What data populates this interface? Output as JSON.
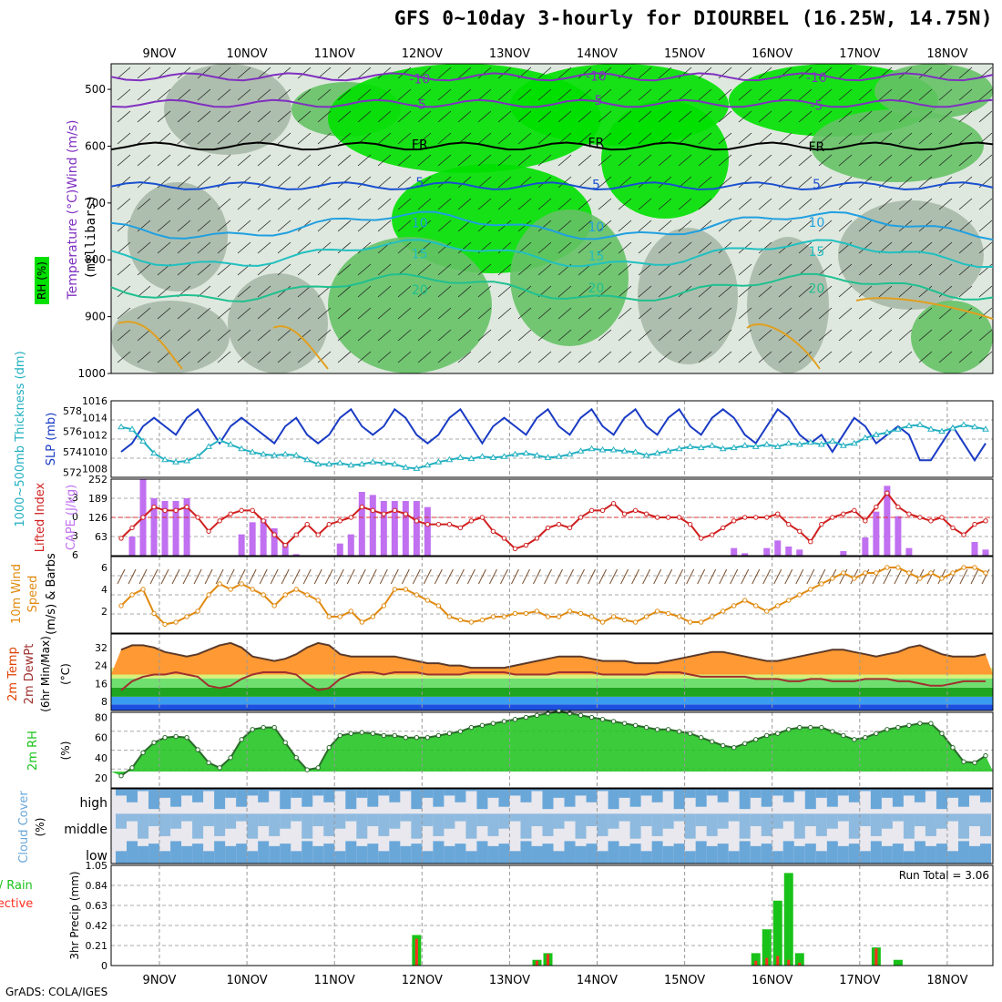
{
  "title": "GFS 0~10day 3-hourly for DIOURBEL (16.25W, 14.75N)",
  "credit": "GrADS: COLA/IGES",
  "dates": [
    "9NOV",
    "10NOV",
    "11NOV",
    "12NOV",
    "13NOV",
    "14NOV",
    "15NOV",
    "16NOV",
    "17NOV",
    "18NOV"
  ],
  "colors": {
    "rh_green": "#00e000",
    "rh_mid": "#66c266",
    "rh_gray": "#a9b9a9",
    "rh_light": "#dfe8df",
    "slp": "#1a3bc4",
    "thickness": "#22b0c0",
    "cape": "#c070f0",
    "li": "#d02020",
    "wind": "#e08a10",
    "temp_hot": "#e04000",
    "temp_warm": "#ff9933",
    "dew": "#a03030",
    "rh2m": "#19c219",
    "cloud": "#6aa7d9",
    "precip_total": "#19c219",
    "precip_conv": "#ff3020"
  },
  "panels": {
    "upper": {
      "ylabel": "Temperature (°C)Wind (m/s)",
      "ylabel2": "(millibars)",
      "legend": "RH (%)",
      "yticks": [
        "500",
        "600",
        "700",
        "800",
        "900",
        "1000"
      ],
      "contours": [
        {
          "label": "-10",
          "level_mb": 478,
          "color": "#8030c0"
        },
        {
          "label": "-5",
          "level_mb": 525,
          "color": "#8030c0"
        },
        {
          "label": "FR",
          "level_mb": 600,
          "color": "#000000"
        },
        {
          "label": "5",
          "level_mb": 670,
          "color": "#1a50d0"
        },
        {
          "label": "10",
          "level_mb": 740,
          "color": "#20a0e0"
        },
        {
          "label": "15",
          "level_mb": 790,
          "color": "#20c0c0"
        },
        {
          "label": "20",
          "level_mb": 850,
          "color": "#20c090"
        }
      ]
    },
    "slp": {
      "ylabel": "1000~500mb Thickness (dm)",
      "ylabel2": "SLP (mb)",
      "left_ticks": [
        "578",
        "576",
        "574",
        "572"
      ],
      "right_ticks": [
        "1016",
        "1014",
        "1012",
        "1010",
        "1008"
      ]
    },
    "cape": {
      "ylabel": "Lifted Index",
      "ylabel2": "CAPE (J/kg)",
      "left_ticks": [
        "-3",
        "0",
        "3",
        "6"
      ],
      "right_ticks": [
        "252",
        "189",
        "126",
        "63"
      ]
    },
    "wind": {
      "ylabel": "10m Wind",
      "ylabel2": "Speed",
      "ylabel3": "(m/s) & Barbs",
      "ticks": [
        "6",
        "4",
        "2"
      ]
    },
    "temp": {
      "ylabel": "2m Temp",
      "ylabel2": "2m DewPt",
      "ylabel3": "(6hr Min/Max)",
      "unit": "(°C)",
      "ticks": [
        "32",
        "24",
        "16",
        "8"
      ]
    },
    "rh": {
      "ylabel": "2m RH",
      "unit": "(%)",
      "ticks": [
        "80",
        "60",
        "40",
        "20"
      ]
    },
    "cloud": {
      "ylabel": "Cloud Cover",
      "unit": "(%)",
      "levels": [
        "high",
        "middle",
        "low"
      ]
    },
    "precip": {
      "ylabel": "3hr Precip (mm)",
      "legend1": "Total / Rain",
      "legend2": "Convective",
      "ticks": [
        "1.05",
        "0.84",
        "0.63",
        "0.42",
        "0.21",
        "0"
      ],
      "run_total": "Run Total = 3.06"
    }
  },
  "chart_data": [
    {
      "type": "line",
      "title": "SLP (mb)",
      "x_step_hours": 3,
      "values": [
        1012,
        1010,
        1011,
        1013,
        1014,
        1013,
        1012,
        1014,
        1015,
        1013,
        1011,
        1013,
        1014,
        1013,
        1012,
        1011,
        1013,
        1014,
        1012,
        1011,
        1012,
        1014,
        1015,
        1013,
        1012,
        1013,
        1015,
        1014,
        1012,
        1011,
        1012,
        1014,
        1015,
        1013,
        1011,
        1013,
        1014,
        1013,
        1012,
        1014,
        1015,
        1013,
        1012,
        1014,
        1015,
        1013,
        1012,
        1014,
        1015,
        1013,
        1012,
        1014,
        1015,
        1013,
        1012,
        1014,
        1015,
        1014,
        1012,
        1011,
        1013,
        1015,
        1014,
        1012,
        1011,
        1012,
        1010,
        1012,
        1014,
        1013,
        1011,
        1012,
        1013,
        1012,
        1009,
        1009,
        1011,
        1013,
        1011,
        1009,
        1011,
        1013,
        1012,
        1009,
        1009,
        1011,
        1012,
        1008,
        1010,
        1013,
        1013,
        1012
      ],
      "ylim": [
        1007,
        1016
      ]
    },
    {
      "type": "line",
      "title": "1000~500mb Thickness (dm)",
      "x_step_hours": 3,
      "values": [
        576.4,
        576.6,
        576.4,
        575.3,
        574.2,
        573.6,
        573.4,
        573.5,
        573.9,
        574.8,
        575.4,
        575.0,
        574.6,
        574.3,
        574.1,
        574.0,
        574.1,
        574.0,
        573.6,
        573.2,
        573.2,
        573.3,
        573.1,
        573.2,
        573.4,
        573.3,
        573.2,
        572.9,
        572.8,
        573.1,
        573.4,
        573.6,
        573.8,
        573.7,
        573.9,
        573.8,
        573.9,
        574.1,
        574.2,
        574.0,
        573.8,
        573.9,
        574.1,
        574.4,
        574.6,
        574.5,
        574.5,
        574.4,
        574.3,
        574.0,
        574.2,
        574.4,
        574.6,
        574.8,
        574.7,
        574.9,
        574.6,
        574.7,
        574.9,
        574.8,
        575.0,
        574.8,
        575.1,
        575.0,
        575.2,
        575.0,
        575.3,
        574.9,
        575.1,
        575.6,
        575.9,
        576.1,
        576.4,
        576.7,
        576.8,
        576.4,
        576.2,
        576.5,
        576.8,
        576.6,
        576.4,
        576.0,
        575.7,
        576.4,
        577.2,
        577.3,
        577.0,
        576.3,
        575.9,
        575.5,
        575.8,
        576.1
      ],
      "ylim": [
        572,
        579
      ]
    },
    {
      "type": "bar",
      "title": "CAPE (J/kg)",
      "x_step_hours": 3,
      "values": [
        0,
        0,
        63,
        252,
        189,
        180,
        180,
        189,
        0,
        0,
        0,
        0,
        70,
        110,
        120,
        90,
        40,
        5,
        0,
        0,
        0,
        40,
        70,
        210,
        200,
        180,
        180,
        180,
        180,
        160,
        0,
        0,
        0,
        0,
        0,
        0,
        0,
        0,
        0,
        0,
        0,
        0,
        0,
        0,
        0,
        0,
        0,
        0,
        0,
        0,
        0,
        0,
        0,
        0,
        0,
        0,
        0,
        25,
        8,
        0,
        25,
        50,
        30,
        20,
        0,
        0,
        0,
        15,
        0,
        60,
        145,
        230,
        130,
        25,
        0,
        0,
        0,
        0,
        0,
        45,
        20,
        50,
        60,
        60,
        0,
        0,
        0,
        0,
        15,
        90,
        90,
        0,
        0,
        0,
        0,
        0,
        85,
        35
      ],
      "ylim": [
        0,
        252
      ]
    },
    {
      "type": "line",
      "title": "Lifted Index",
      "x_step_hours": 3,
      "values": [
        3.0,
        3.5,
        2.0,
        0.5,
        -1.0,
        -0.5,
        -0.5,
        -1.0,
        0.5,
        2.5,
        1.0,
        0.0,
        -0.5,
        -0.5,
        1.0,
        3.0,
        4.5,
        3.0,
        1.5,
        3.0,
        1.5,
        1.0,
        0.5,
        -1.0,
        -0.5,
        0.0,
        -0.5,
        0.0,
        1.0,
        1.5,
        1.5,
        1.5,
        2.0,
        1.0,
        0.5,
        2.5,
        3.5,
        5.0,
        4.5,
        3.5,
        2.0,
        1.5,
        2.0,
        0.5,
        -0.5,
        -0.5,
        -1.5,
        0.0,
        -0.5,
        0.0,
        0.5,
        0.5,
        0.5,
        1.5,
        3.5,
        3.0,
        2.0,
        1.0,
        0.5,
        0.5,
        0.5,
        0.0,
        1.5,
        2.5,
        4.0,
        1.5,
        0.5,
        0.0,
        -0.5,
        1.0,
        -1.0,
        -3.0,
        -1.0,
        0.0,
        0.5,
        1.0,
        0.5,
        2.0,
        3.0,
        1.5,
        1.0,
        0.5,
        2.0,
        2.0,
        1.0,
        -0.5,
        -1.5,
        0.5,
        2.5,
        3.5,
        4.5,
        2.5,
        1.5,
        1.0,
        0.5,
        0.0,
        0.5,
        1.0
      ],
      "ylim": [
        -5,
        6
      ]
    },
    {
      "type": "line",
      "title": "10m Wind Speed (m/s)",
      "x_step_hours": 3,
      "values": [
        3.5,
        2.5,
        3.5,
        4.0,
        1.8,
        0.8,
        1.0,
        1.5,
        2.0,
        3.5,
        4.5,
        4.0,
        4.5,
        4.0,
        3.5,
        2.5,
        3.5,
        4.0,
        3.5,
        3.0,
        1.5,
        1.5,
        2.0,
        1.0,
        1.5,
        2.5,
        4.0,
        4.0,
        3.5,
        3.0,
        2.5,
        1.5,
        1.2,
        1.0,
        1.2,
        1.5,
        1.5,
        1.8,
        1.8,
        2.0,
        1.5,
        1.5,
        2.0,
        1.8,
        1.5,
        1.0,
        1.5,
        1.2,
        1.0,
        1.5,
        2.0,
        1.8,
        1.5,
        1.0,
        1.0,
        1.5,
        2.0,
        2.5,
        3.0,
        2.5,
        2.0,
        2.5,
        3.0,
        3.5,
        4.0,
        4.5,
        5.0,
        5.5,
        5.0,
        5.5,
        5.5,
        6.0,
        6.0,
        5.5,
        5.0,
        5.5,
        5.0,
        5.5,
        6.0,
        6.0,
        5.5,
        6.0,
        6.5,
        6.0,
        5.5,
        6.0,
        6.5,
        5.5,
        5.0,
        5.5,
        7.0,
        6.0,
        4.5,
        3.5,
        3.0,
        3.5,
        3.0
      ],
      "ylim": [
        0,
        7
      ]
    },
    {
      "type": "area",
      "title": "2m Temp (°C)",
      "x_step_hours": 3,
      "values": [
        30,
        31,
        33,
        33,
        32,
        30,
        29,
        28,
        29,
        31,
        33,
        34,
        32,
        28,
        27,
        26,
        27,
        29,
        32,
        34,
        33,
        29,
        28,
        28,
        28,
        28,
        28,
        27,
        26,
        25,
        25,
        24,
        24,
        23,
        23,
        23,
        23,
        24,
        25,
        26,
        27,
        28,
        28,
        28,
        27,
        26,
        26,
        26,
        25,
        25,
        25,
        26,
        27,
        28,
        29,
        30,
        30,
        29,
        28,
        27,
        26,
        26,
        27,
        28,
        29,
        30,
        31,
        31,
        30,
        29,
        28,
        29,
        30,
        32,
        33,
        31,
        29,
        28,
        28,
        28,
        29,
        31,
        33,
        34,
        31,
        29,
        28,
        28,
        29,
        30,
        32,
        35,
        36,
        33,
        29,
        27,
        25,
        24
      ],
      "ylim": [
        4,
        38
      ]
    },
    {
      "type": "line",
      "title": "2m DewPt (°C)",
      "x_step_hours": 3,
      "values": [
        12,
        13,
        17,
        19,
        20,
        20,
        21,
        20,
        19,
        15,
        14,
        15,
        18,
        20,
        21,
        21,
        21,
        20,
        16,
        13,
        14,
        18,
        20,
        21,
        21,
        20,
        21,
        21,
        21,
        20,
        20,
        20,
        20,
        21,
        21,
        21,
        21,
        20,
        20,
        20,
        20,
        21,
        21,
        21,
        21,
        20,
        20,
        20,
        20,
        20,
        21,
        21,
        21,
        20,
        19,
        19,
        19,
        19,
        19,
        18,
        18,
        18,
        17,
        17,
        18,
        18,
        17,
        17,
        17,
        18,
        18,
        18,
        17,
        17,
        16,
        15,
        15,
        16,
        17,
        17,
        17,
        17,
        16,
        15,
        14,
        15,
        16,
        16,
        14,
        12,
        10,
        10,
        13,
        15,
        16,
        16,
        15,
        15
      ],
      "ylim": [
        4,
        38
      ]
    },
    {
      "type": "area",
      "title": "2m RH (%)",
      "x_step_hours": 3,
      "values": [
        24,
        22,
        30,
        45,
        55,
        60,
        61,
        60,
        48,
        35,
        30,
        40,
        58,
        68,
        70,
        70,
        55,
        40,
        28,
        30,
        50,
        62,
        64,
        65,
        64,
        62,
        62,
        60,
        60,
        60,
        62,
        64,
        66,
        70,
        72,
        74,
        76,
        78,
        80,
        82,
        84,
        86,
        84,
        82,
        80,
        78,
        76,
        74,
        72,
        70,
        68,
        68,
        66,
        64,
        60,
        56,
        52,
        50,
        54,
        58,
        62,
        64,
        68,
        70,
        70,
        70,
        66,
        62,
        58,
        60,
        64,
        68,
        70,
        72,
        74,
        74,
        64,
        50,
        36,
        35,
        42,
        52,
        64,
        70,
        72,
        72,
        66,
        56,
        40,
        32,
        28,
        30,
        38,
        52,
        56,
        50,
        38,
        28,
        20,
        24,
        34,
        48,
        58,
        64,
        70,
        72,
        74,
        74
      ],
      "ylim": [
        10,
        85
      ]
    },
    {
      "type": "bar",
      "title": "3hr Precip Total (mm)",
      "x_step_hours": 3,
      "values": [
        0,
        0,
        0,
        0,
        0,
        0,
        0,
        0,
        0,
        0,
        0,
        0,
        0,
        0,
        0,
        0,
        0,
        0,
        0,
        0,
        0,
        0,
        0,
        0,
        0,
        0,
        0,
        0,
        0.32,
        0,
        0,
        0,
        0,
        0,
        0,
        0,
        0,
        0,
        0,
        0.06,
        0.13,
        0,
        0,
        0,
        0,
        0,
        0,
        0,
        0,
        0,
        0,
        0,
        0,
        0,
        0,
        0,
        0,
        0,
        0,
        0.13,
        0.38,
        0.68,
        0.97,
        0.13,
        0,
        0,
        0,
        0,
        0,
        0,
        0.19,
        0,
        0.06,
        0,
        0,
        0,
        0,
        0,
        0,
        0,
        0,
        0,
        0,
        0,
        0,
        0,
        0,
        0,
        0,
        0,
        0,
        0,
        0,
        0,
        0,
        0,
        0
      ],
      "ylim": [
        0,
        1.05
      ]
    },
    {
      "type": "bar",
      "title": "3hr Precip Convective (mm)",
      "x_step_hours": 3,
      "values": [
        0,
        0,
        0,
        0,
        0,
        0,
        0,
        0,
        0,
        0,
        0,
        0,
        0,
        0,
        0,
        0,
        0,
        0,
        0,
        0,
        0,
        0,
        0,
        0,
        0,
        0,
        0,
        0,
        0.28,
        0,
        0,
        0,
        0,
        0,
        0,
        0,
        0,
        0,
        0,
        0.05,
        0.12,
        0,
        0,
        0,
        0,
        0,
        0,
        0,
        0,
        0,
        0,
        0,
        0,
        0,
        0,
        0,
        0,
        0,
        0,
        0.05,
        0.08,
        0.1,
        0.06,
        0.03,
        0,
        0,
        0,
        0,
        0,
        0,
        0.18,
        0,
        0,
        0,
        0,
        0,
        0,
        0,
        0,
        0,
        0,
        0,
        0,
        0,
        0.05,
        0,
        0,
        0,
        0,
        0,
        0,
        0,
        0,
        0,
        0,
        0,
        0
      ],
      "ylim": [
        0,
        1.05
      ]
    }
  ]
}
